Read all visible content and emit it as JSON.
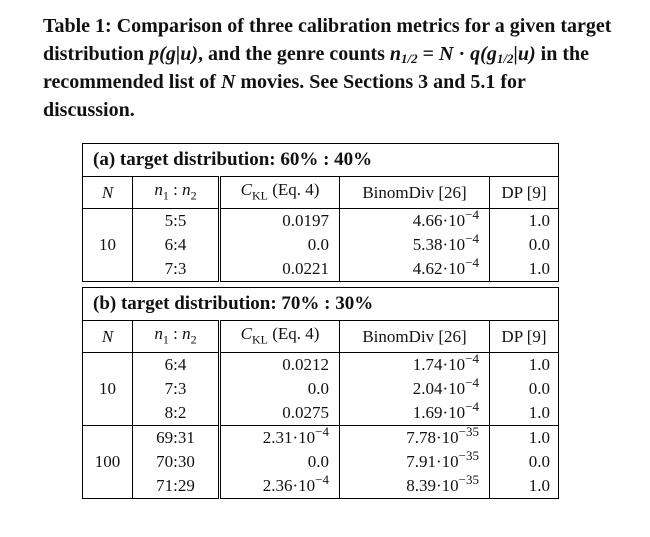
{
  "caption": {
    "prefix": "Table 1: Comparison of three calibration metrics for a given target distribution",
    "p": "p",
    "p_args": "(g|u)",
    "mid": ", and the genre counts",
    "n": "n",
    "n_sub": "1/2",
    "eq": "=",
    "N": "N",
    "dot": "·",
    "q": "q",
    "q_g": "(g",
    "q_sub": "1/2",
    "q_rest": "|u)",
    "suffix": "in the recommended list of",
    "N2": "N",
    "end": "movies. See Sections 3 and 5.1 for discussion."
  },
  "header": {
    "N": "N",
    "n1n2_main": "n",
    "n1n2_sub1": "1",
    "n1n2_colon": " : ",
    "n1n2_main2": "n",
    "n1n2_sub2": "2",
    "ckl_main": "C",
    "ckl_sub": "KL",
    "ckl_ref": "(Eq. 4)",
    "binom": "BinomDiv [26]",
    "dp": "DP [9]"
  },
  "tables": [
    {
      "title": "(a)  target distribution: 60% : 40%",
      "groups": [
        {
          "N": "10",
          "rows": [
            {
              "ratio": "5:5",
              "ckl_m": "0.0197",
              "ckl_e": "",
              "binom_m": "4.66·10",
              "binom_e": "−4",
              "dp": "1.0"
            },
            {
              "ratio": "6:4",
              "ckl_m": "0.0",
              "ckl_e": "",
              "binom_m": "5.38·10",
              "binom_e": "−4",
              "dp": "0.0"
            },
            {
              "ratio": "7:3",
              "ckl_m": "0.0221",
              "ckl_e": "",
              "binom_m": "4.62·10",
              "binom_e": "−4",
              "dp": "1.0"
            }
          ]
        }
      ]
    },
    {
      "title": "(b)  target distribution: 70% : 30%",
      "groups": [
        {
          "N": "10",
          "rows": [
            {
              "ratio": "6:4",
              "ckl_m": "0.0212",
              "ckl_e": "",
              "binom_m": "1.74·10",
              "binom_e": "−4",
              "dp": "1.0"
            },
            {
              "ratio": "7:3",
              "ckl_m": "0.0",
              "ckl_e": "",
              "binom_m": "2.04·10",
              "binom_e": "−4",
              "dp": "0.0"
            },
            {
              "ratio": "8:2",
              "ckl_m": "0.0275",
              "ckl_e": "",
              "binom_m": "1.69·10",
              "binom_e": "−4",
              "dp": "1.0"
            }
          ]
        },
        {
          "N": "100",
          "rows": [
            {
              "ratio": "69:31",
              "ckl_m": "2.31·10",
              "ckl_e": "−4",
              "binom_m": "7.78·10",
              "binom_e": "−35",
              "dp": "1.0"
            },
            {
              "ratio": "70:30",
              "ckl_m": "0.0",
              "ckl_e": "",
              "binom_m": "7.91·10",
              "binom_e": "−35",
              "dp": "0.0"
            },
            {
              "ratio": "71:29",
              "ckl_m": "2.36·10",
              "ckl_e": "−4",
              "binom_m": "8.39·10",
              "binom_e": "−35",
              "dp": "1.0"
            }
          ]
        }
      ]
    }
  ]
}
